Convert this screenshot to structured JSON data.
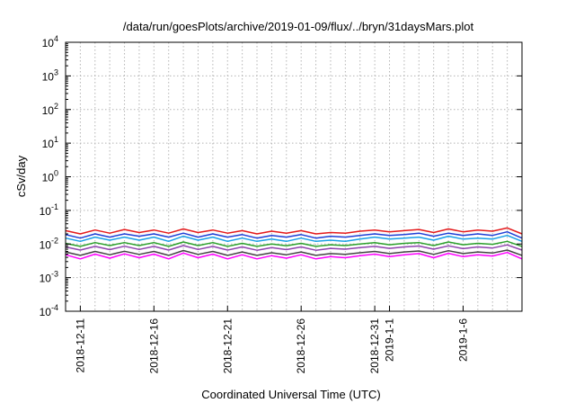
{
  "chart_data": {
    "type": "line",
    "title": "/data/run/goesPlots/archive/2019-01-09/flux/../bryn/31daysMars.plot",
    "xlabel": "Coordinated Universal Time (UTC)",
    "ylabel": "cSv/day",
    "yscale": "log",
    "ylim": [
      0.0001,
      10000
    ],
    "y_ticks": [
      {
        "base": "10",
        "exp": "-4",
        "value": 0.0001
      },
      {
        "base": "10",
        "exp": "-3",
        "value": 0.001
      },
      {
        "base": "10",
        "exp": "-2",
        "value": 0.01
      },
      {
        "base": "10",
        "exp": "-1",
        "value": 0.1
      },
      {
        "base": "10",
        "exp": "0",
        "value": 1
      },
      {
        "base": "10",
        "exp": "1",
        "value": 10
      },
      {
        "base": "10",
        "exp": "2",
        "value": 100
      },
      {
        "base": "10",
        "exp": "3",
        "value": 1000
      },
      {
        "base": "10",
        "exp": "4",
        "value": 10000
      }
    ],
    "xlim": [
      "2018-12-10",
      "2019-01-10"
    ],
    "x_ticks": [
      {
        "date": "2018-12-11",
        "label": "2018-12-11"
      },
      {
        "date": "2018-12-16",
        "label": "2018-12-16"
      },
      {
        "date": "2018-12-21",
        "label": "2018-12-21"
      },
      {
        "date": "2018-12-26",
        "label": "2018-12-26"
      },
      {
        "date": "2018-12-31",
        "label": "2018-12-31"
      },
      {
        "date": "2019-01-01",
        "label": "2019-1-1"
      },
      {
        "date": "2019-01-06",
        "label": "2019-1-6"
      }
    ],
    "grid": true,
    "legend": "none",
    "x": [
      "2018-12-10",
      "2018-12-11",
      "2018-12-12",
      "2018-12-13",
      "2018-12-14",
      "2018-12-15",
      "2018-12-16",
      "2018-12-17",
      "2018-12-18",
      "2018-12-19",
      "2018-12-20",
      "2018-12-21",
      "2018-12-22",
      "2018-12-23",
      "2018-12-24",
      "2018-12-25",
      "2018-12-26",
      "2018-12-27",
      "2018-12-28",
      "2018-12-29",
      "2018-12-30",
      "2018-12-31",
      "2019-01-01",
      "2019-01-02",
      "2019-01-03",
      "2019-01-04",
      "2019-01-05",
      "2019-01-06",
      "2019-01-07",
      "2019-01-08",
      "2019-01-09",
      "2019-01-10"
    ],
    "series": [
      {
        "color": "#e41a1c",
        "values": [
          0.025,
          0.02,
          0.026,
          0.021,
          0.027,
          0.022,
          0.026,
          0.021,
          0.028,
          0.022,
          0.026,
          0.021,
          0.025,
          0.02,
          0.024,
          0.021,
          0.025,
          0.02,
          0.022,
          0.021,
          0.024,
          0.026,
          0.023,
          0.025,
          0.027,
          0.022,
          0.028,
          0.023,
          0.026,
          0.024,
          0.03,
          0.02
        ]
      },
      {
        "color": "#1f3fd6",
        "values": [
          0.019,
          0.015,
          0.02,
          0.016,
          0.02,
          0.017,
          0.02,
          0.016,
          0.021,
          0.016,
          0.02,
          0.016,
          0.019,
          0.015,
          0.018,
          0.016,
          0.019,
          0.015,
          0.017,
          0.016,
          0.018,
          0.02,
          0.018,
          0.019,
          0.021,
          0.017,
          0.021,
          0.018,
          0.02,
          0.018,
          0.023,
          0.015
        ]
      },
      {
        "color": "#1aa0e6",
        "values": [
          0.015,
          0.012,
          0.016,
          0.013,
          0.016,
          0.013,
          0.016,
          0.012,
          0.017,
          0.013,
          0.016,
          0.012,
          0.015,
          0.012,
          0.014,
          0.012,
          0.015,
          0.012,
          0.013,
          0.012,
          0.014,
          0.016,
          0.014,
          0.015,
          0.016,
          0.013,
          0.017,
          0.014,
          0.015,
          0.014,
          0.018,
          0.012
        ]
      },
      {
        "color": "#2ca02c",
        "values": [
          0.0105,
          0.0085,
          0.011,
          0.009,
          0.011,
          0.009,
          0.011,
          0.0085,
          0.0115,
          0.009,
          0.011,
          0.0085,
          0.0105,
          0.0085,
          0.01,
          0.0088,
          0.0105,
          0.0085,
          0.0095,
          0.009,
          0.01,
          0.011,
          0.0095,
          0.0105,
          0.011,
          0.009,
          0.0115,
          0.0095,
          0.0105,
          0.0098,
          0.012,
          0.0085
        ]
      },
      {
        "color": "#8e44ad",
        "values": [
          0.0082,
          0.0066,
          0.0085,
          0.0068,
          0.0086,
          0.0069,
          0.0085,
          0.0066,
          0.009,
          0.0069,
          0.0085,
          0.0066,
          0.0082,
          0.0065,
          0.0078,
          0.0068,
          0.0082,
          0.0065,
          0.0074,
          0.007,
          0.0078,
          0.0085,
          0.0074,
          0.0082,
          0.0087,
          0.007,
          0.0088,
          0.0073,
          0.0082,
          0.0076,
          0.0094,
          0.0066
        ]
      },
      {
        "color": "#444444",
        "values": [
          0.0058,
          0.0046,
          0.006,
          0.0048,
          0.0061,
          0.0049,
          0.006,
          0.0046,
          0.0064,
          0.0049,
          0.006,
          0.0046,
          0.0058,
          0.0046,
          0.0055,
          0.0048,
          0.0058,
          0.0046,
          0.0052,
          0.0049,
          0.0055,
          0.006,
          0.0052,
          0.0058,
          0.0062,
          0.0049,
          0.0063,
          0.0052,
          0.0058,
          0.0054,
          0.0066,
          0.0046
        ]
      },
      {
        "color": "#ff00ff",
        "values": [
          0.0048,
          0.0036,
          0.005,
          0.0038,
          0.0051,
          0.0039,
          0.005,
          0.0036,
          0.0054,
          0.0039,
          0.005,
          0.0036,
          0.0048,
          0.0036,
          0.0045,
          0.0038,
          0.0048,
          0.0036,
          0.0042,
          0.0039,
          0.0045,
          0.005,
          0.0042,
          0.0048,
          0.0052,
          0.0039,
          0.0053,
          0.0042,
          0.0048,
          0.0044,
          0.0056,
          0.0036
        ]
      }
    ]
  }
}
